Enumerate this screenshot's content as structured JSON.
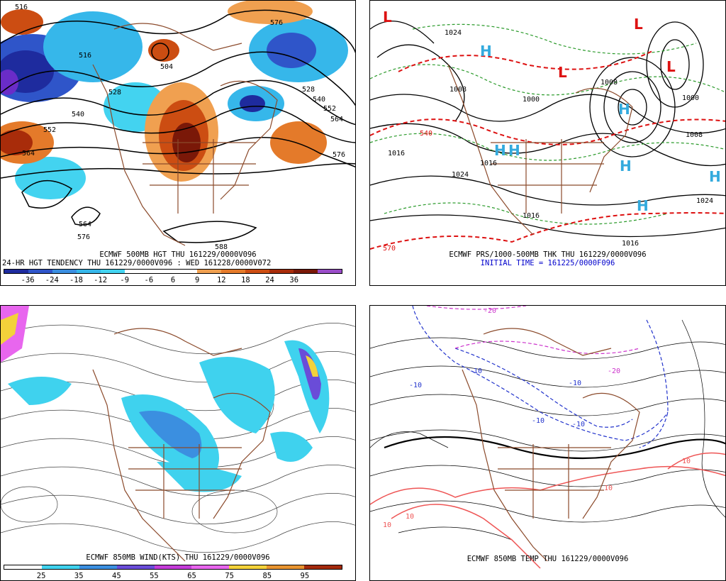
{
  "panels": {
    "top_left": {
      "caption_line1": "ECMWF 500MB HGT THU 161229/0000V096",
      "caption_line2": "24-HR HGT TENDENCY THU 161229/0000V096 : WED 161228/0000V072",
      "colorbar_colors": [
        "#1e2b9e",
        "#2f55c9",
        "#3a8ee0",
        "#36b7ea",
        "#43d3f0",
        "#ffffff",
        "#ffffff",
        "#ffffff",
        "#f0a050",
        "#e47a2a",
        "#cc4d12",
        "#a82c0a",
        "#7a1808",
        "#9a4cc8"
      ],
      "tick_labels": [
        "-36",
        "-24",
        "-18",
        "-12",
        "-9",
        "-6",
        "6",
        "9",
        "12",
        "18",
        "24",
        "36"
      ],
      "contour_labels": [
        "516",
        "504",
        "528",
        "540",
        "552",
        "564",
        "576",
        "588",
        "564",
        "576",
        "516",
        "528",
        "540",
        "552",
        "564",
        "576"
      ]
    },
    "top_right": {
      "caption_line1": "ECMWF PRS/1000-500MB THK THU 161229/0000V096",
      "caption_line2": "INITIAL TIME = 161225/0000F096",
      "pressure_labels": [
        "1024",
        "1008",
        "1000",
        "1016",
        "1024",
        "1016",
        "1016",
        "1016",
        "1008",
        "1000",
        "1024",
        "1008"
      ],
      "thickness_labels": [
        "570",
        "540"
      ],
      "highs": [
        "H",
        "H",
        "H",
        "H",
        "H",
        "H",
        "H"
      ],
      "lows": [
        "L",
        "L",
        "L",
        "L"
      ],
      "colors": {
        "pressure": "#000000",
        "thickness": "#2a9a2a",
        "freezing": "#dd1111",
        "high": "#33aadd",
        "low": "#dd1111"
      }
    },
    "bottom_left": {
      "caption_line1": "ECMWF 850MB WIND(KTS) THU 161229/0000V096",
      "colorbar_colors": [
        "#ffffff",
        "#3fd2ee",
        "#3b8fe0",
        "#6a4cd8",
        "#c43cd8",
        "#e866ee",
        "#f3d23a",
        "#e89430",
        "#a32a0c"
      ],
      "tick_labels": [
        "25",
        "35",
        "45",
        "55",
        "65",
        "75",
        "85",
        "95"
      ]
    },
    "bottom_right": {
      "caption_line1": "ECMWF 850MB TEMP THU 161229/0000V096",
      "isotherm_labels": [
        "-20",
        "-10",
        "-10",
        "-10",
        "-10",
        "-10",
        "-20",
        "10",
        "10",
        "10",
        "10"
      ],
      "colors": {
        "cold": "#2233cc",
        "very_cold": "#cc33cc",
        "warm": "#ee5555",
        "base": "#000000"
      }
    }
  }
}
